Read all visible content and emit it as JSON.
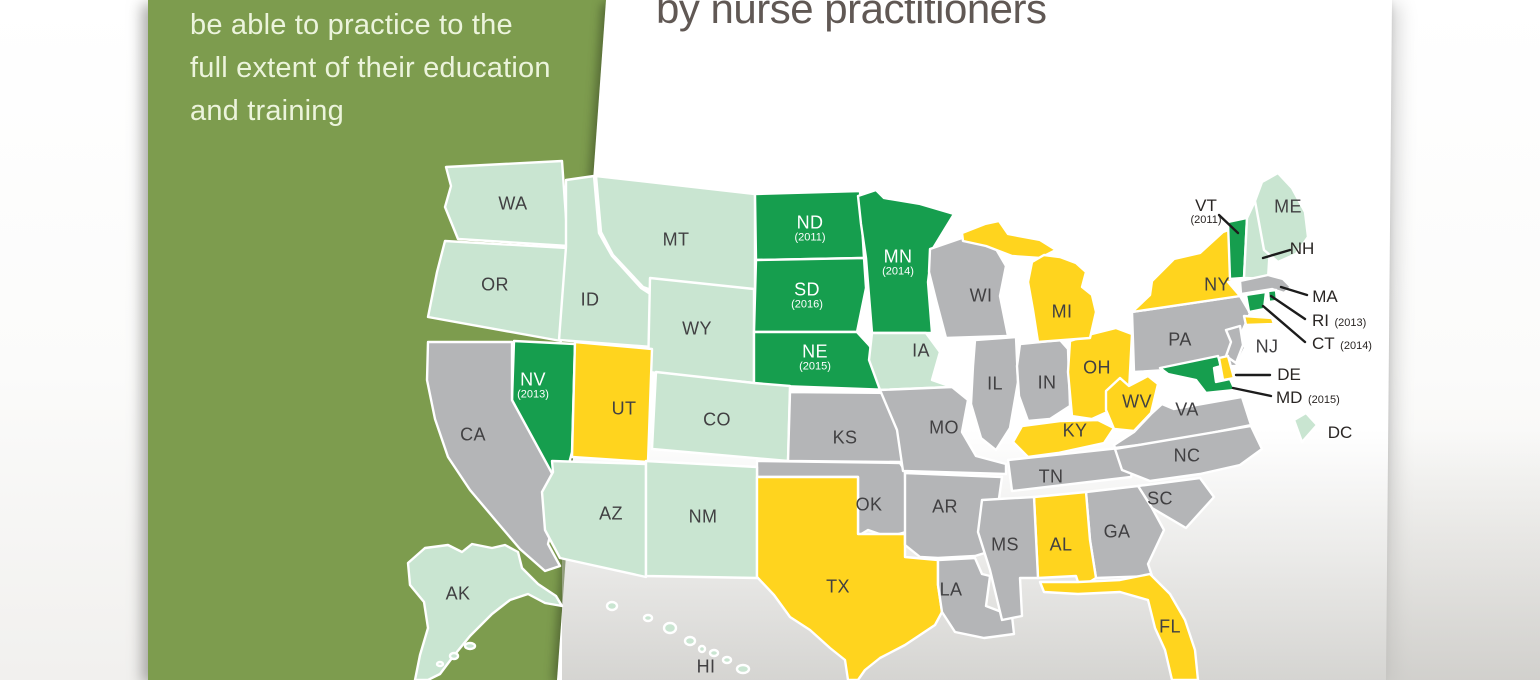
{
  "title": "by nurse practitioners",
  "sidebar": {
    "text": "be able to practice to the full extent of their education and training"
  },
  "colors": {
    "dark_green": "#169e4e",
    "light_green": "#c9e5d1",
    "yellow": "#ffd41e",
    "gray": "#b4b5b7",
    "sidebar_green": "#7d9c4e",
    "label_dark": "#414042",
    "label_white": "#ffffff",
    "callout_line": "#1c1c1c",
    "title_text": "#605854"
  },
  "states": [
    {
      "code": "WA",
      "label": "WA",
      "fill": "light_green"
    },
    {
      "code": "OR",
      "label": "OR",
      "fill": "light_green"
    },
    {
      "code": "ID",
      "label": "ID",
      "fill": "light_green"
    },
    {
      "code": "MT",
      "label": "MT",
      "fill": "light_green"
    },
    {
      "code": "WY",
      "label": "WY",
      "fill": "light_green"
    },
    {
      "code": "CO",
      "label": "CO",
      "fill": "light_green"
    },
    {
      "code": "AZ",
      "label": "AZ",
      "fill": "light_green"
    },
    {
      "code": "NM",
      "label": "NM",
      "fill": "light_green"
    },
    {
      "code": "AK",
      "label": "AK",
      "fill": "light_green"
    },
    {
      "code": "HI",
      "label": "HI",
      "fill": "light_green"
    },
    {
      "code": "IA",
      "label": "IA",
      "fill": "light_green"
    },
    {
      "code": "ME",
      "label": "ME",
      "fill": "light_green"
    },
    {
      "code": "NH",
      "label": "NH",
      "fill": "light_green"
    },
    {
      "code": "DC",
      "label": "DC",
      "fill": "light_green"
    },
    {
      "code": "NV",
      "label": "NV",
      "fill": "dark_green",
      "year": "(2013)"
    },
    {
      "code": "ND",
      "label": "ND",
      "fill": "dark_green",
      "year": "(2011)"
    },
    {
      "code": "SD",
      "label": "SD",
      "fill": "dark_green",
      "year": "(2016)"
    },
    {
      "code": "MN",
      "label": "MN",
      "fill": "dark_green",
      "year": "(2014)"
    },
    {
      "code": "NE",
      "label": "NE",
      "fill": "dark_green",
      "year": "(2015)"
    },
    {
      "code": "VT",
      "label": "VT",
      "fill": "dark_green",
      "year": "(2011)"
    },
    {
      "code": "RI",
      "label": "RI",
      "fill": "dark_green",
      "year": "(2013)"
    },
    {
      "code": "CT",
      "label": "CT",
      "fill": "dark_green",
      "year": "(2014)"
    },
    {
      "code": "MD",
      "label": "MD",
      "fill": "dark_green",
      "year": "(2015)"
    },
    {
      "code": "UT",
      "label": "UT",
      "fill": "yellow"
    },
    {
      "code": "TX",
      "label": "TX",
      "fill": "yellow"
    },
    {
      "code": "MI",
      "label": "MI",
      "fill": "yellow"
    },
    {
      "code": "OH",
      "label": "OH",
      "fill": "yellow"
    },
    {
      "code": "WV",
      "label": "WV",
      "fill": "yellow"
    },
    {
      "code": "KY",
      "label": "KY",
      "fill": "yellow"
    },
    {
      "code": "AL",
      "label": "AL",
      "fill": "yellow"
    },
    {
      "code": "FL",
      "label": "FL",
      "fill": "yellow"
    },
    {
      "code": "NY",
      "label": "NY",
      "fill": "yellow"
    },
    {
      "code": "DE",
      "label": "DE",
      "fill": "yellow"
    },
    {
      "code": "CA",
      "label": "CA",
      "fill": "gray"
    },
    {
      "code": "KS",
      "label": "KS",
      "fill": "gray"
    },
    {
      "code": "OK",
      "label": "OK",
      "fill": "gray"
    },
    {
      "code": "AR",
      "label": "AR",
      "fill": "gray"
    },
    {
      "code": "MO",
      "label": "MO",
      "fill": "gray"
    },
    {
      "code": "LA",
      "label": "LA",
      "fill": "gray"
    },
    {
      "code": "MS",
      "label": "MS",
      "fill": "gray"
    },
    {
      "code": "TN",
      "label": "TN",
      "fill": "gray"
    },
    {
      "code": "WI",
      "label": "WI",
      "fill": "gray"
    },
    {
      "code": "IL",
      "label": "IL",
      "fill": "gray"
    },
    {
      "code": "IN",
      "label": "IN",
      "fill": "gray"
    },
    {
      "code": "PA",
      "label": "PA",
      "fill": "gray"
    },
    {
      "code": "VA",
      "label": "VA",
      "fill": "gray"
    },
    {
      "code": "NC",
      "label": "NC",
      "fill": "gray"
    },
    {
      "code": "SC",
      "label": "SC",
      "fill": "gray"
    },
    {
      "code": "GA",
      "label": "GA",
      "fill": "gray"
    },
    {
      "code": "NJ",
      "label": "NJ",
      "fill": "gray"
    },
    {
      "code": "MA",
      "label": "MA",
      "fill": "gray"
    }
  ],
  "callouts": [
    {
      "code": "VT",
      "label": "VT",
      "year": "(2011)"
    },
    {
      "code": "NH",
      "label": "NH"
    },
    {
      "code": "MA",
      "label": "MA"
    },
    {
      "code": "RI",
      "label": "RI",
      "year": "(2013)"
    },
    {
      "code": "CT",
      "label": "CT",
      "year": "(2014)"
    },
    {
      "code": "DE",
      "label": "DE"
    },
    {
      "code": "MD",
      "label": "MD",
      "year": "(2015)"
    },
    {
      "code": "DC",
      "label": "DC"
    }
  ]
}
